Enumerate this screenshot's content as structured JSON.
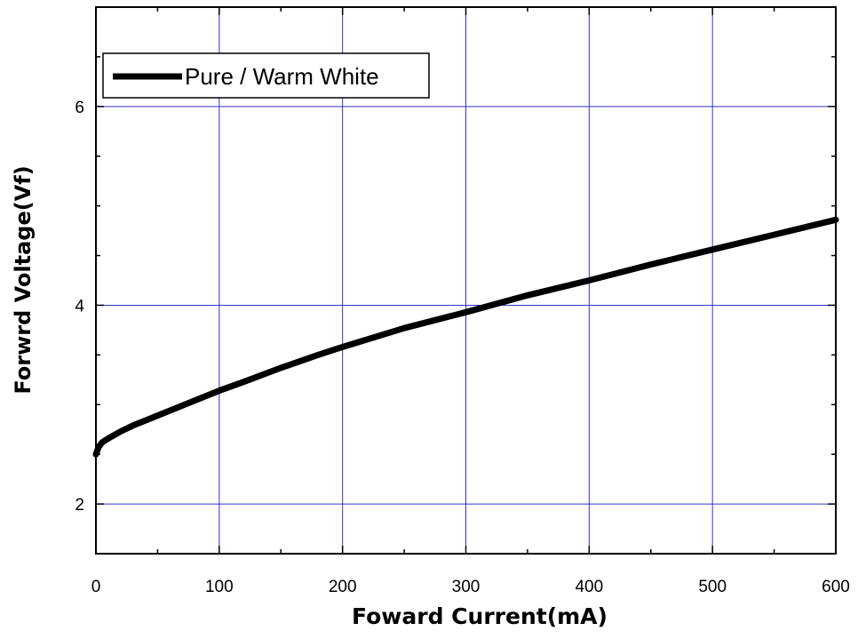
{
  "chart_data": {
    "type": "line",
    "title": "",
    "xlabel": "Foward Current(mA)",
    "ylabel": "Forwrd Voltage(Vf)",
    "xlim": [
      0,
      600
    ],
    "ylim": [
      1.5,
      7
    ],
    "x_ticks": [
      0,
      100,
      200,
      300,
      400,
      500,
      600
    ],
    "y_ticks": [
      2,
      4,
      6
    ],
    "grid": true,
    "legend_position": "top-left",
    "series": [
      {
        "name": "Pure / Warm White",
        "color": "#000000",
        "x": [
          0,
          2,
          5,
          10,
          20,
          30,
          40,
          50,
          60,
          80,
          100,
          120,
          150,
          180,
          200,
          250,
          300,
          350,
          400,
          450,
          500,
          550,
          600
        ],
        "y": [
          2.5,
          2.57,
          2.62,
          2.66,
          2.73,
          2.79,
          2.84,
          2.89,
          2.94,
          3.04,
          3.14,
          3.23,
          3.37,
          3.5,
          3.58,
          3.77,
          3.93,
          4.1,
          4.25,
          4.41,
          4.56,
          4.71,
          4.86
        ]
      }
    ]
  },
  "colors": {
    "grid": "#3333cc",
    "axis": "#000000",
    "background": "#ffffff"
  }
}
